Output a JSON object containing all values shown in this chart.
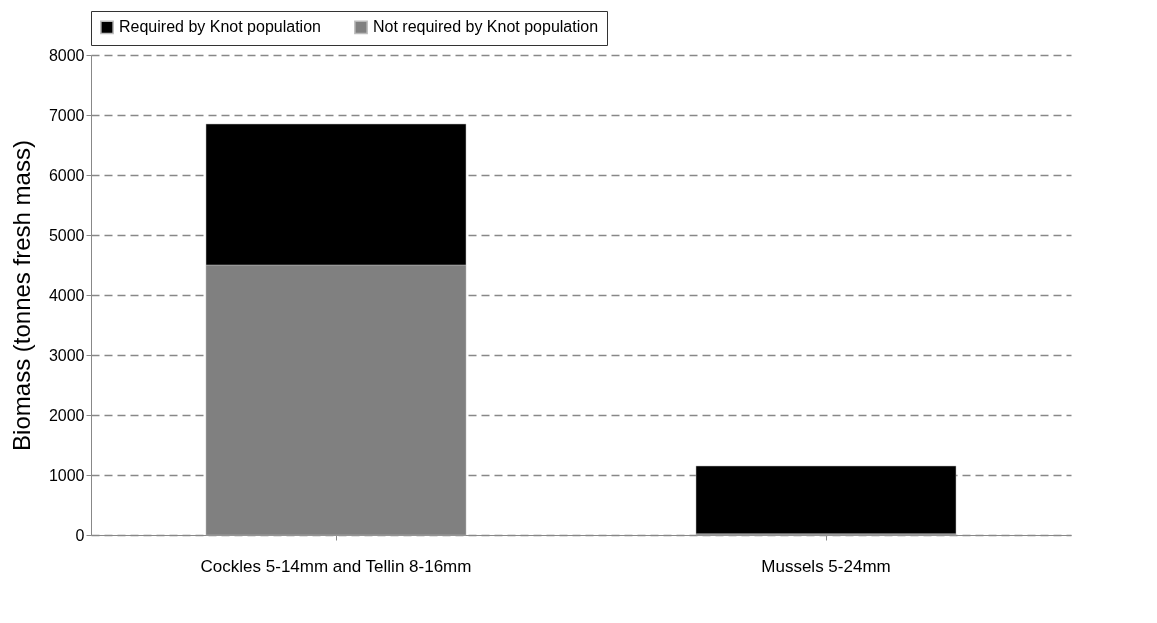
{
  "chart_data": {
    "type": "bar",
    "stacked": true,
    "ylabel": "Biomass (tonnes fresh mass)",
    "categories": [
      "Cockles 5-14mm and Tellin 8-16mm",
      "Mussels 5-24mm"
    ],
    "series": [
      {
        "name": "Not required by Knot population",
        "color": "#808080",
        "values": [
          4500,
          20
        ]
      },
      {
        "name": "Required by Knot population",
        "color": "#000000",
        "values": [
          2350,
          1130
        ]
      }
    ],
    "ylim": [
      0,
      8000
    ],
    "yticks": [
      0,
      1000,
      2000,
      3000,
      4000,
      5000,
      6000,
      7000,
      8000
    ],
    "grid": "y",
    "legend": "top"
  }
}
